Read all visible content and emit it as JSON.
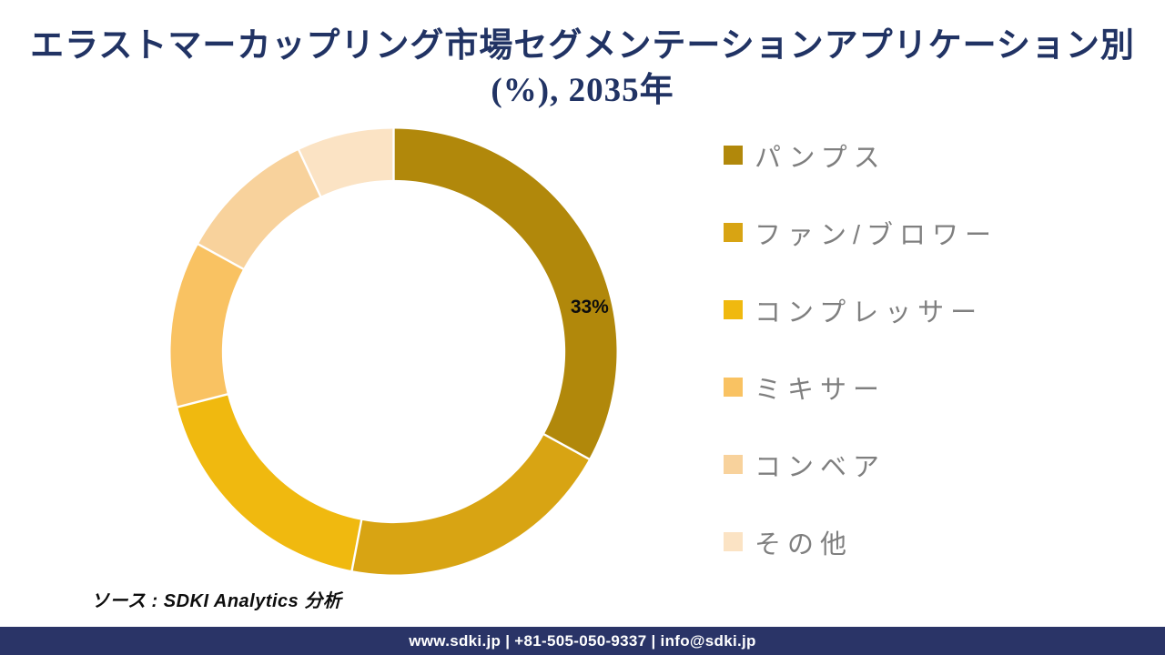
{
  "title": {
    "line1": "エラストマーカップリング市場セグメンテーションアプリケーション別",
    "line2": "(%), 2035年",
    "color": "#213364"
  },
  "chart_data": {
    "type": "pie",
    "subtype": "donut",
    "title": "エラストマーカップリング市場セグメンテーションアプリケーション別 (%), 2035年",
    "categories": [
      "パンプス",
      "ファン/ブロワー",
      "コンプレッサー",
      "ミキサー",
      "コンベア",
      "その他"
    ],
    "values": [
      33,
      20,
      18,
      12,
      10,
      7
    ],
    "unit": "%",
    "colors": [
      "#B1880B",
      "#D8A413",
      "#F0B90F",
      "#F9C262",
      "#F8D29C",
      "#FBE3C4"
    ],
    "start_angle_deg": 0,
    "direction": "clockwise",
    "donut_hole_ratio": 0.77,
    "legend_position": "right",
    "visible_data_label": {
      "category": "パンプス",
      "text": "33%",
      "color": "#0d0d0d"
    },
    "separator_color": "#ffffff"
  },
  "legend": {
    "text_color": "#7F7F7F"
  },
  "source": {
    "text": "ソース : SDKI Analytics 分析"
  },
  "footer": {
    "text": "www.sdki.jp | +81-505-050-9337 | info@sdki.jp",
    "background": "#2A3467"
  }
}
